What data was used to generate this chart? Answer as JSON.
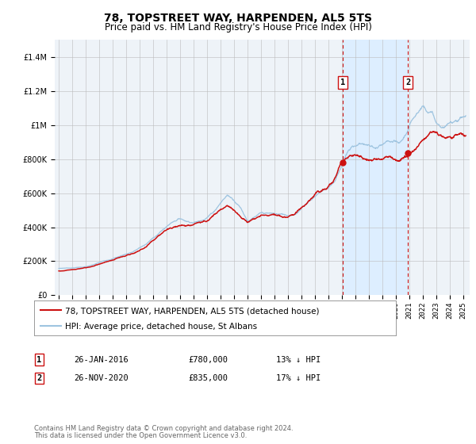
{
  "title": "78, TOPSTREET WAY, HARPENDEN, AL5 5TS",
  "subtitle": "Price paid vs. HM Land Registry's House Price Index (HPI)",
  "ylim": [
    0,
    1500000
  ],
  "yticks": [
    0,
    200000,
    400000,
    600000,
    800000,
    1000000,
    1200000,
    1400000
  ],
  "ytick_labels": [
    "£0",
    "£200K",
    "£400K",
    "£600K",
    "£800K",
    "£1M",
    "£1.2M",
    "£1.4M"
  ],
  "hpi_color": "#9ec4e0",
  "price_color": "#cc1111",
  "marker_color": "#cc1111",
  "vline_color": "#cc1111",
  "grid_color": "#bbbbbb",
  "span_color": "#ddeeff",
  "background_color": "#eef3f8",
  "legend1_label": "78, TOPSTREET WAY, HARPENDEN, AL5 5TS (detached house)",
  "legend2_label": "HPI: Average price, detached house, St Albans",
  "annotation1_num": "1",
  "annotation1_date": "26-JAN-2016",
  "annotation1_price": "£780,000",
  "annotation1_hpi": "13% ↓ HPI",
  "annotation1_year": 2016.07,
  "annotation1_value": 780000,
  "annotation2_num": "2",
  "annotation2_date": "26-NOV-2020",
  "annotation2_price": "£835,000",
  "annotation2_hpi": "17% ↓ HPI",
  "annotation2_year": 2020.92,
  "annotation2_value": 835000,
  "footer1": "Contains HM Land Registry data © Crown copyright and database right 2024.",
  "footer2": "This data is licensed under the Open Government Licence v3.0.",
  "title_fontsize": 10,
  "subtitle_fontsize": 8.5,
  "axis_fontsize": 7,
  "legend_fontsize": 7.5,
  "annotation_fontsize": 7.5,
  "footer_fontsize": 6
}
